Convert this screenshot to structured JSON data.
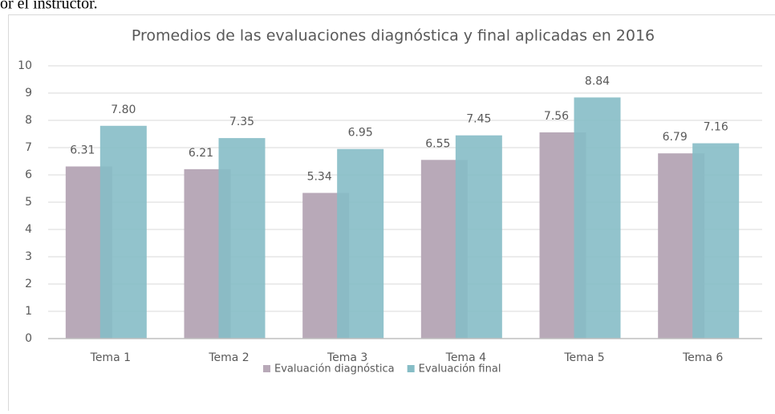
{
  "page_text": "or el instructor.",
  "chart_data": {
    "type": "bar",
    "title": "Promedios de las evaluaciones diagnóstica y final aplicadas en 2016",
    "categories": [
      "Tema 1",
      "Tema 2",
      "Tema 3",
      "Tema 4",
      "Tema 5",
      "Tema 6"
    ],
    "series": [
      {
        "name": "Evaluación diagnóstica",
        "color": "#b8a9b8",
        "values": [
          6.31,
          6.21,
          5.34,
          6.55,
          7.56,
          6.79
        ],
        "value_labels": [
          "6.31",
          "6.21",
          "5.34",
          "6.55",
          "7.56",
          "6.79"
        ]
      },
      {
        "name": "Evaluación final",
        "color": "#86bdc6",
        "values": [
          7.8,
          7.35,
          6.95,
          7.45,
          8.84,
          7.16
        ],
        "value_labels": [
          "7.80",
          "7.35",
          "6.95",
          "7.45",
          "8.84",
          "7.16"
        ]
      }
    ],
    "ylim": [
      0,
      10
    ],
    "yticks": [
      0,
      1,
      2,
      3,
      4,
      5,
      6,
      7,
      8,
      9,
      10
    ],
    "grid": true,
    "legend": "bottom"
  }
}
